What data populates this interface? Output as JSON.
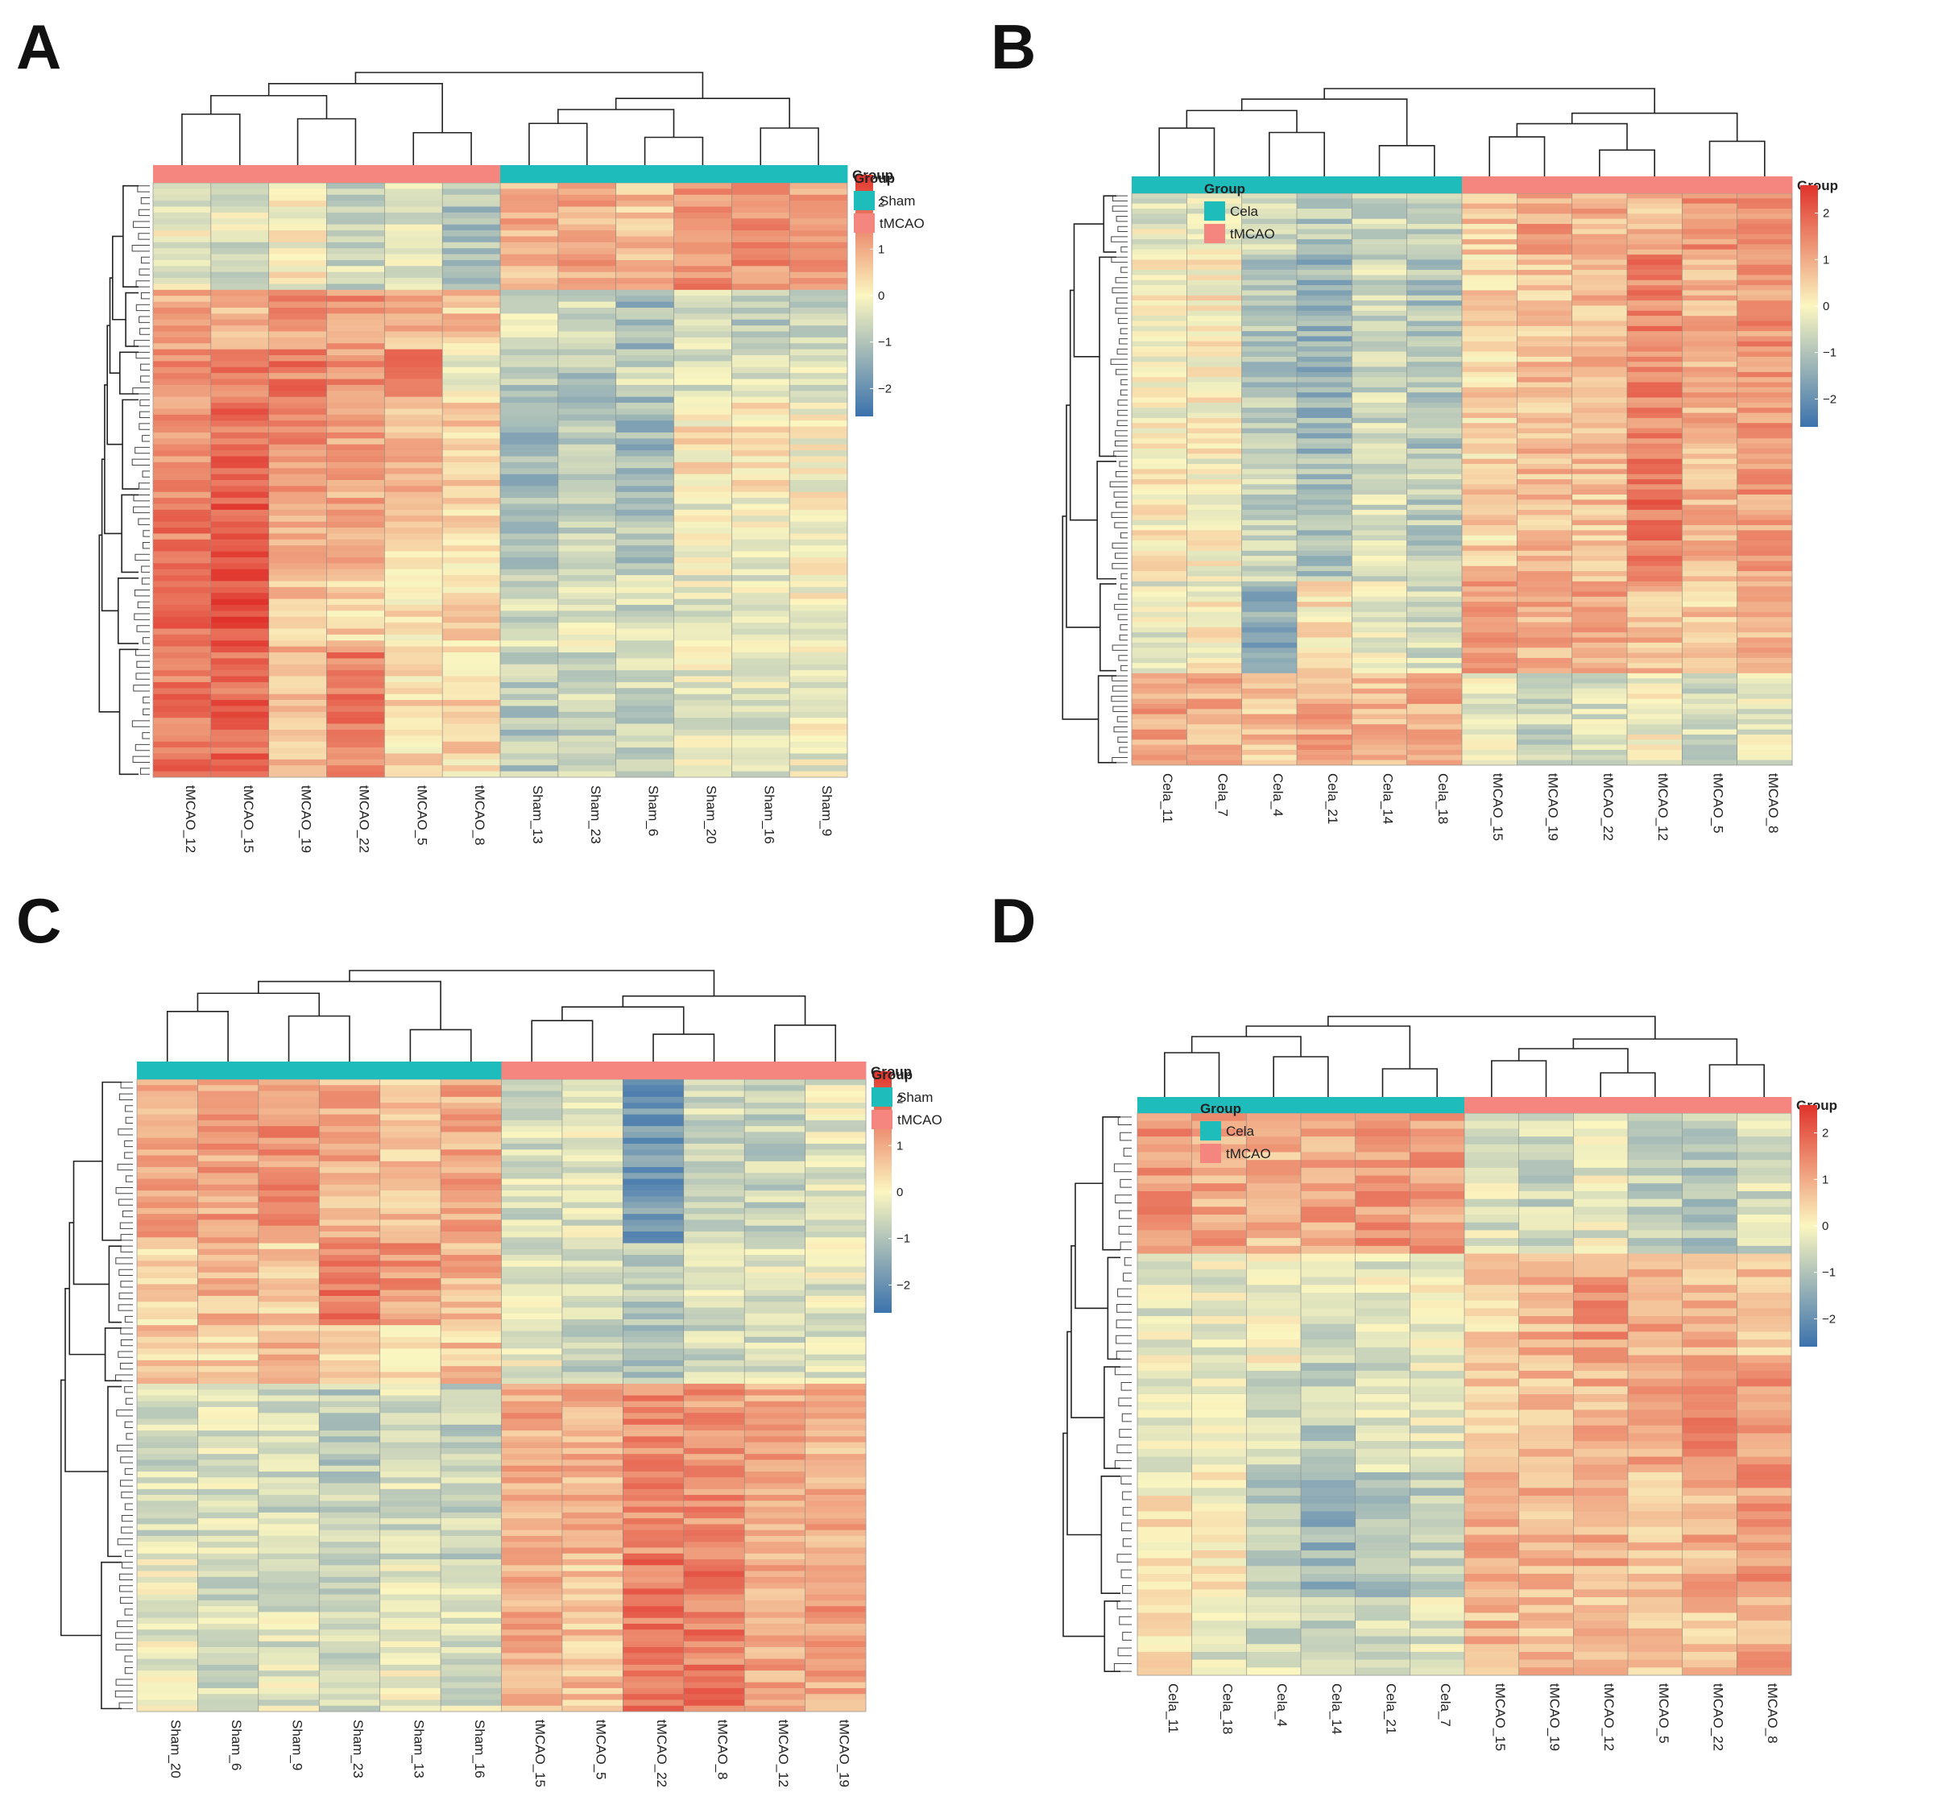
{
  "figure": {
    "panels": [
      "A",
      "B",
      "C",
      "D"
    ]
  },
  "colors": {
    "group_a": "#1fbcbc",
    "group_b": "#f4857f",
    "scale_low": "#3b72ad",
    "scale_mid": "#fbf6c0",
    "scale_high": "#e0332b"
  },
  "chart_data": [
    {
      "type": "heatmap",
      "panel": "A",
      "title": "",
      "columns": [
        "tMCAO_12",
        "tMCAO_15",
        "tMCAO_19",
        "tMCAO_22",
        "tMCAO_5",
        "tMCAO_8",
        "Sham_13",
        "Sham_23",
        "Sham_6",
        "Sham_20",
        "Sham_16",
        "Sham_9"
      ],
      "column_groups": [
        "tMCAO",
        "tMCAO",
        "tMCAO",
        "tMCAO",
        "tMCAO",
        "tMCAO",
        "Sham",
        "Sham",
        "Sham",
        "Sham",
        "Sham",
        "Sham"
      ],
      "annotation_title": "Group",
      "legend": {
        "title": "Group",
        "entries": [
          {
            "label": "Sham",
            "color": "#1fbcbc"
          },
          {
            "label": "tMCAO",
            "color": "#f4857f"
          }
        ]
      },
      "color_scale": {
        "min": -2.6,
        "max": 2.6,
        "ticks": [
          2,
          1,
          0,
          -1,
          -2
        ],
        "tick_labels": [
          "2",
          "1",
          "0",
          "−1",
          "−2"
        ]
      },
      "row_blocks": [
        {
          "rows": 18,
          "values": [
            -0.2,
            -0.4,
            0.0,
            -0.6,
            -0.3,
            -1.0,
            0.9,
            1.0,
            0.7,
            1.4,
            1.3,
            1.2
          ]
        },
        {
          "rows": 10,
          "values": [
            1.1,
            0.9,
            1.2,
            1.3,
            0.8,
            0.6,
            -0.5,
            -0.7,
            -1.2,
            -0.6,
            -0.9,
            -0.8
          ]
        },
        {
          "rows": 8,
          "values": [
            1.3,
            1.5,
            1.6,
            1.3,
            1.7,
            -0.3,
            -0.8,
            -0.9,
            -0.6,
            -0.4,
            -0.5,
            -0.3
          ]
        },
        {
          "rows": 16,
          "values": [
            1.4,
            1.8,
            1.3,
            1.1,
            0.7,
            0.5,
            -1.3,
            -1.0,
            -1.2,
            0.2,
            0.1,
            -0.1
          ]
        },
        {
          "rows": 14,
          "values": [
            1.6,
            2.1,
            0.8,
            1.0,
            0.4,
            0.3,
            -0.9,
            -0.7,
            -1.0,
            -0.2,
            -0.1,
            0.0
          ]
        },
        {
          "rows": 12,
          "values": [
            1.9,
            2.3,
            0.6,
            0.5,
            0.2,
            0.4,
            -0.5,
            -0.4,
            -0.6,
            -0.3,
            -0.2,
            -0.1
          ]
        },
        {
          "rows": 22,
          "values": [
            1.7,
            1.9,
            0.8,
            1.6,
            0.3,
            0.4,
            -0.9,
            -0.6,
            -0.7,
            -0.3,
            -0.4,
            -0.2
          ]
        }
      ]
    },
    {
      "type": "heatmap",
      "panel": "B",
      "title": "",
      "columns": [
        "Cela_11",
        "Cela_7",
        "Cela_4",
        "Cela_21",
        "Cela_14",
        "Cela_18",
        "tMCAO_15",
        "tMCAO_19",
        "tMCAO_22",
        "tMCAO_12",
        "tMCAO_5",
        "tMCAO_8"
      ],
      "column_groups": [
        "Cela",
        "Cela",
        "Cela",
        "Cela",
        "Cela",
        "Cela",
        "tMCAO",
        "tMCAO",
        "tMCAO",
        "tMCAO",
        "tMCAO",
        "tMCAO"
      ],
      "annotation_title": "Group",
      "legend": {
        "title": "Group",
        "entries": [
          {
            "label": "Cela",
            "color": "#1fbcbc"
          },
          {
            "label": "tMCAO",
            "color": "#f4857f"
          }
        ]
      },
      "color_scale": {
        "min": -2.6,
        "max": 2.6,
        "ticks": [
          2,
          1,
          0,
          -1,
          -2
        ],
        "tick_labels": [
          "2",
          "1",
          "0",
          "−1",
          "−2"
        ]
      },
      "row_blocks": [
        {
          "rows": 12,
          "values": [
            -0.3,
            -0.2,
            -0.5,
            -0.9,
            -0.6,
            -0.8,
            0.6,
            1.1,
            0.9,
            0.7,
            1.4,
            1.2
          ]
        },
        {
          "rows": 40,
          "values": [
            0.0,
            0.1,
            -0.9,
            -1.3,
            -0.6,
            -1.0,
            0.4,
            0.7,
            0.8,
            1.5,
            0.9,
            1.3
          ]
        },
        {
          "rows": 24,
          "values": [
            0.1,
            0.0,
            -0.7,
            -1.0,
            -0.5,
            -0.8,
            0.5,
            0.8,
            0.7,
            1.7,
            0.8,
            1.2
          ]
        },
        {
          "rows": 18,
          "values": [
            -0.3,
            0.0,
            -1.5,
            0.2,
            -0.2,
            -0.5,
            1.2,
            0.9,
            1.0,
            0.8,
            0.6,
            0.9
          ]
        },
        {
          "rows": 18,
          "values": [
            1.1,
            0.9,
            0.7,
            1.0,
            0.8,
            1.0,
            -0.3,
            -0.6,
            -0.4,
            -0.1,
            -0.5,
            -0.3
          ]
        }
      ]
    },
    {
      "type": "heatmap",
      "panel": "C",
      "title": "",
      "columns": [
        "Sham_20",
        "Sham_6",
        "Sham_9",
        "Sham_23",
        "Sham_13",
        "Sham_16",
        "tMCAO_15",
        "tMCAO_5",
        "tMCAO_22",
        "tMCAO_8",
        "tMCAO_12",
        "tMCAO_19"
      ],
      "column_groups": [
        "Sham",
        "Sham",
        "Sham",
        "Sham",
        "Sham",
        "Sham",
        "tMCAO",
        "tMCAO",
        "tMCAO",
        "tMCAO",
        "tMCAO",
        "tMCAO"
      ],
      "annotation_title": "Group",
      "legend": {
        "title": "Group",
        "entries": [
          {
            "label": "Sham",
            "color": "#1fbcbc"
          },
          {
            "label": "tMCAO",
            "color": "#f4857f"
          }
        ]
      },
      "color_scale": {
        "min": -2.6,
        "max": 2.6,
        "ticks": [
          2,
          1,
          0,
          -1,
          -2
        ],
        "tick_labels": [
          "2",
          "1",
          "0",
          "−1",
          "−2"
        ]
      },
      "row_blocks": [
        {
          "rows": 28,
          "values": [
            1.0,
            1.1,
            1.3,
            0.9,
            0.7,
            1.0,
            -0.5,
            -0.4,
            -1.8,
            -0.6,
            -0.7,
            -0.3
          ]
        },
        {
          "rows": 14,
          "values": [
            0.4,
            0.8,
            0.6,
            1.7,
            1.2,
            0.9,
            -0.4,
            -0.6,
            -0.8,
            -0.5,
            -0.4,
            -0.3
          ]
        },
        {
          "rows": 10,
          "values": [
            0.6,
            0.5,
            0.7,
            0.4,
            0.5,
            0.6,
            -0.2,
            -0.7,
            -0.9,
            -0.6,
            -0.5,
            -0.4
          ]
        },
        {
          "rows": 30,
          "values": [
            -0.5,
            -0.4,
            -0.6,
            -0.8,
            -0.5,
            -0.7,
            1.0,
            0.9,
            1.4,
            1.3,
            1.0,
            0.9
          ]
        },
        {
          "rows": 26,
          "values": [
            -0.3,
            -0.5,
            -0.4,
            -0.6,
            -0.2,
            -0.4,
            0.9,
            0.7,
            1.7,
            1.6,
            1.0,
            1.1
          ]
        }
      ]
    },
    {
      "type": "heatmap",
      "panel": "D",
      "title": "",
      "columns": [
        "Cela_11",
        "Cela_18",
        "Cela_4",
        "Cela_14",
        "Cela_21",
        "Cela_7",
        "tMCAO_15",
        "tMCAO_19",
        "tMCAO_12",
        "tMCAO_5",
        "tMCAO_22",
        "tMCAO_8"
      ],
      "column_groups": [
        "Cela",
        "Cela",
        "Cela",
        "Cela",
        "Cela",
        "Cela",
        "tMCAO",
        "tMCAO",
        "tMCAO",
        "tMCAO",
        "tMCAO",
        "tMCAO"
      ],
      "annotation_title": "Group",
      "legend": {
        "title": "Group",
        "entries": [
          {
            "label": "Cela",
            "color": "#1fbcbc"
          },
          {
            "label": "tMCAO",
            "color": "#f4857f"
          }
        ]
      },
      "color_scale": {
        "min": -2.6,
        "max": 2.6,
        "ticks": [
          2,
          1,
          0,
          -1,
          -2
        ],
        "tick_labels": [
          "2",
          "1",
          "0",
          "−1",
          "−2"
        ]
      },
      "row_blocks": [
        {
          "rows": 18,
          "values": [
            1.2,
            1.0,
            0.8,
            1.1,
            1.3,
            1.2,
            -0.4,
            -0.6,
            -0.3,
            -0.7,
            -0.9,
            -0.5
          ]
        },
        {
          "rows": 14,
          "values": [
            -0.3,
            -0.2,
            0.0,
            -0.4,
            -0.3,
            -0.1,
            0.5,
            0.9,
            1.2,
            1.0,
            0.8,
            0.6
          ]
        },
        {
          "rows": 14,
          "values": [
            -0.2,
            -0.4,
            -0.6,
            -0.8,
            -0.5,
            -0.3,
            0.7,
            0.8,
            0.9,
            1.1,
            1.5,
            1.2
          ]
        },
        {
          "rows": 16,
          "values": [
            0.2,
            0.0,
            -1.0,
            -1.3,
            -1.2,
            -0.8,
            0.9,
            0.8,
            1.0,
            0.7,
            0.9,
            1.2
          ]
        },
        {
          "rows": 10,
          "values": [
            0.4,
            -0.3,
            -0.5,
            -0.8,
            -0.6,
            -0.4,
            0.8,
            0.7,
            0.6,
            0.5,
            0.7,
            1.0
          ]
        }
      ]
    }
  ]
}
